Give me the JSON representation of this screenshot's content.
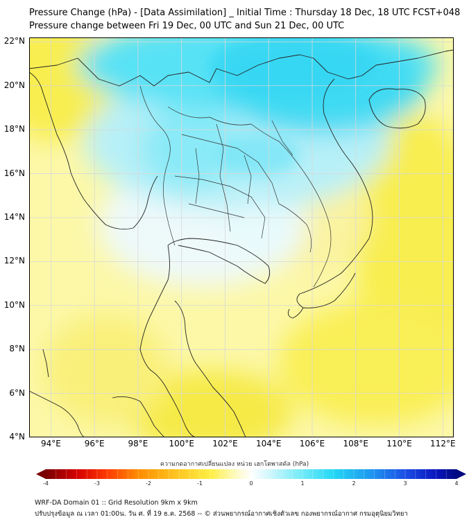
{
  "header": {
    "title_line1": "Pressure Change (hPa) - [Data Assimilation] _ Initial Time : Thursday 18 Dec, 18 UTC FCST+048",
    "title_line2": "Pressure change between Fri 19 Dec, 00 UTC and Sun 21 Dec, 00 UTC"
  },
  "map": {
    "lon_range": [
      93,
      112.5
    ],
    "lat_range": [
      4,
      22.2
    ],
    "lat_labels": [
      {
        "lat": 22,
        "text": "22°N"
      },
      {
        "lat": 20,
        "text": "20°N"
      },
      {
        "lat": 18,
        "text": "18°N"
      },
      {
        "lat": 16,
        "text": "16°N"
      },
      {
        "lat": 14,
        "text": "14°N"
      },
      {
        "lat": 12,
        "text": "12°N"
      },
      {
        "lat": 10,
        "text": "10°N"
      },
      {
        "lat": 8,
        "text": "8°N"
      },
      {
        "lat": 6,
        "text": "6°N"
      },
      {
        "lat": 4,
        "text": "4°N"
      }
    ],
    "lon_labels": [
      {
        "lon": 94,
        "text": "94°E"
      },
      {
        "lon": 96,
        "text": "96°E"
      },
      {
        "lon": 98,
        "text": "98°E"
      },
      {
        "lon": 100,
        "text": "100°E"
      },
      {
        "lon": 102,
        "text": "102°E"
      },
      {
        "lon": 104,
        "text": "104°E"
      },
      {
        "lon": 106,
        "text": "106°E"
      },
      {
        "lon": 108,
        "text": "108°E"
      },
      {
        "lon": 110,
        "text": "110°E"
      },
      {
        "lon": 112,
        "text": "112°E"
      }
    ],
    "colors": {
      "yellow": "#fbf14a",
      "pale_yellow": "#fcfac8",
      "white": "#ffffff",
      "light_cyan": "#cff6fb",
      "cyan": "#4ce3f6",
      "coast": "#222222",
      "grid": "#d8d8d8"
    }
  },
  "colorbar": {
    "title": "ความกดอากาศเปลี่ยนแปลง หน่วย เฮกโตพาสคัล (hPa)",
    "range": [
      -4,
      4
    ],
    "ticks": [
      "-4",
      "-3",
      "-2",
      "-1",
      "0",
      "1",
      "2",
      "3",
      "4"
    ],
    "stops": [
      {
        "v": -4,
        "c": "#7a0000"
      },
      {
        "v": -3.4,
        "c": "#d40000"
      },
      {
        "v": -2.8,
        "c": "#ff3b00"
      },
      {
        "v": -2.2,
        "c": "#ff8c00"
      },
      {
        "v": -1.5,
        "c": "#ffc21e"
      },
      {
        "v": -0.8,
        "c": "#ffee44"
      },
      {
        "v": -0.3,
        "c": "#fdfac0"
      },
      {
        "v": 0,
        "c": "#ffffff"
      },
      {
        "v": 0.3,
        "c": "#d8f8fd"
      },
      {
        "v": 0.9,
        "c": "#7fedf8"
      },
      {
        "v": 1.6,
        "c": "#25d8f5"
      },
      {
        "v": 2.3,
        "c": "#1e9bf0"
      },
      {
        "v": 3.0,
        "c": "#1c4ee6"
      },
      {
        "v": 3.6,
        "c": "#0a16bf"
      },
      {
        "v": 4,
        "c": "#000a80"
      }
    ]
  },
  "footer": {
    "line1": "WRF-DA Domain 01 :: Grid Resolution 9km x 9km",
    "line2": "ปรับปรุงข้อมูล ณ เวลา 01:00น. วัน ศ. ที่ 19 ธ.ค. 2568 -- © ส่วนพยากรณ์อากาศเชิงตัวเลข กองพยากรณ์อากาศ กรมอุตุนิยมวิทยา"
  }
}
